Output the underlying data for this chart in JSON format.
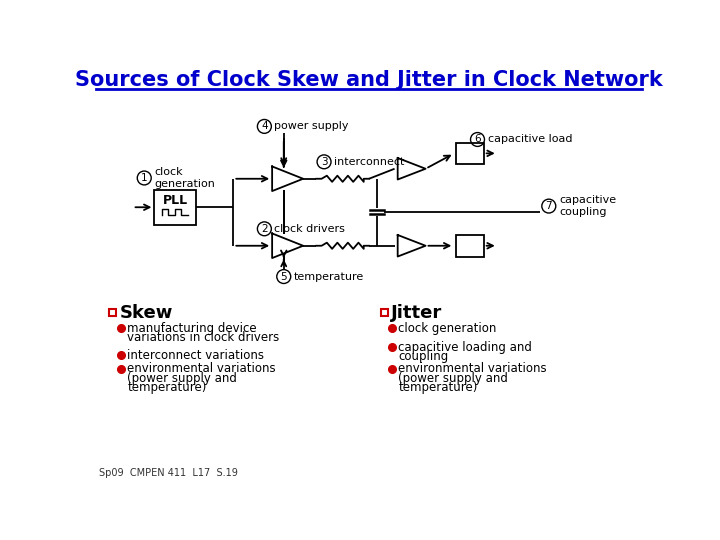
{
  "title": "Sources of Clock Skew and Jitter in Clock Network",
  "title_color": "#0000CC",
  "bg_color": "#FFFFFF",
  "skew_title": "Skew",
  "jitter_title": "Jitter",
  "skew_bullets": [
    "manufacturing device\nvariations in clock drivers",
    "interconnect variations",
    "environmental variations\n(power supply and\ntemperature)"
  ],
  "jitter_bullets": [
    "clock generation",
    "capacitive loading and\ncoupling",
    "environmental variations\n(power supply and\ntemperature)"
  ],
  "bullet_color": "#CC0000",
  "checkbox_color": "#CC0000",
  "footer": "Sp09  CMPEN 411  L17  S.19",
  "text_color": "#000000",
  "line_color": "#000000"
}
